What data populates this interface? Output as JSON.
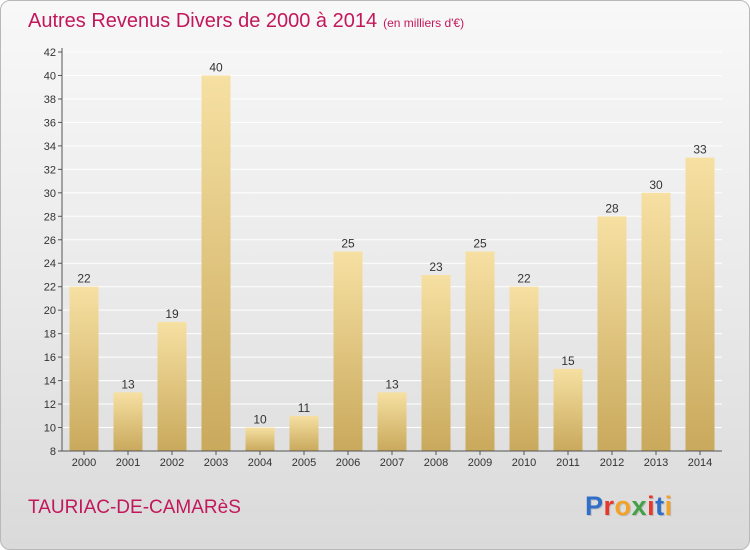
{
  "title": "Autres Revenus Divers de 2000 à 2014",
  "subtitle": "(en milliers d'€)",
  "city": "TAURIAC-DE-CAMARèS",
  "logo": {
    "text": "Proxiti",
    "letter_colors": [
      "#2f6fc8",
      "#e5392b",
      "#f2a22a",
      "#43a047",
      "#e5392b",
      "#2f6fc8",
      "#f2a22a"
    ]
  },
  "colors": {
    "title": "#c2185b",
    "bar_top": "#f6e0a2",
    "bar_bottom": "#c9a95c",
    "grid": "#ffffff",
    "axis": "#555555"
  },
  "chart_data": {
    "type": "bar",
    "title": "Autres Revenus Divers de 2000 à 2014",
    "subtitle": "(en milliers d'€)",
    "categories": [
      "2000",
      "2001",
      "2002",
      "2003",
      "2004",
      "2005",
      "2006",
      "2007",
      "2008",
      "2009",
      "2010",
      "2011",
      "2012",
      "2013",
      "2014"
    ],
    "values": [
      22,
      13,
      19,
      40,
      10,
      11,
      25,
      13,
      23,
      25,
      22,
      15,
      28,
      30,
      33
    ],
    "ylim": [
      8,
      42
    ],
    "yticks": [
      8,
      10,
      12,
      14,
      16,
      18,
      20,
      22,
      24,
      26,
      28,
      30,
      32,
      34,
      36,
      38,
      40,
      42
    ],
    "grid": true,
    "legend": "none"
  }
}
